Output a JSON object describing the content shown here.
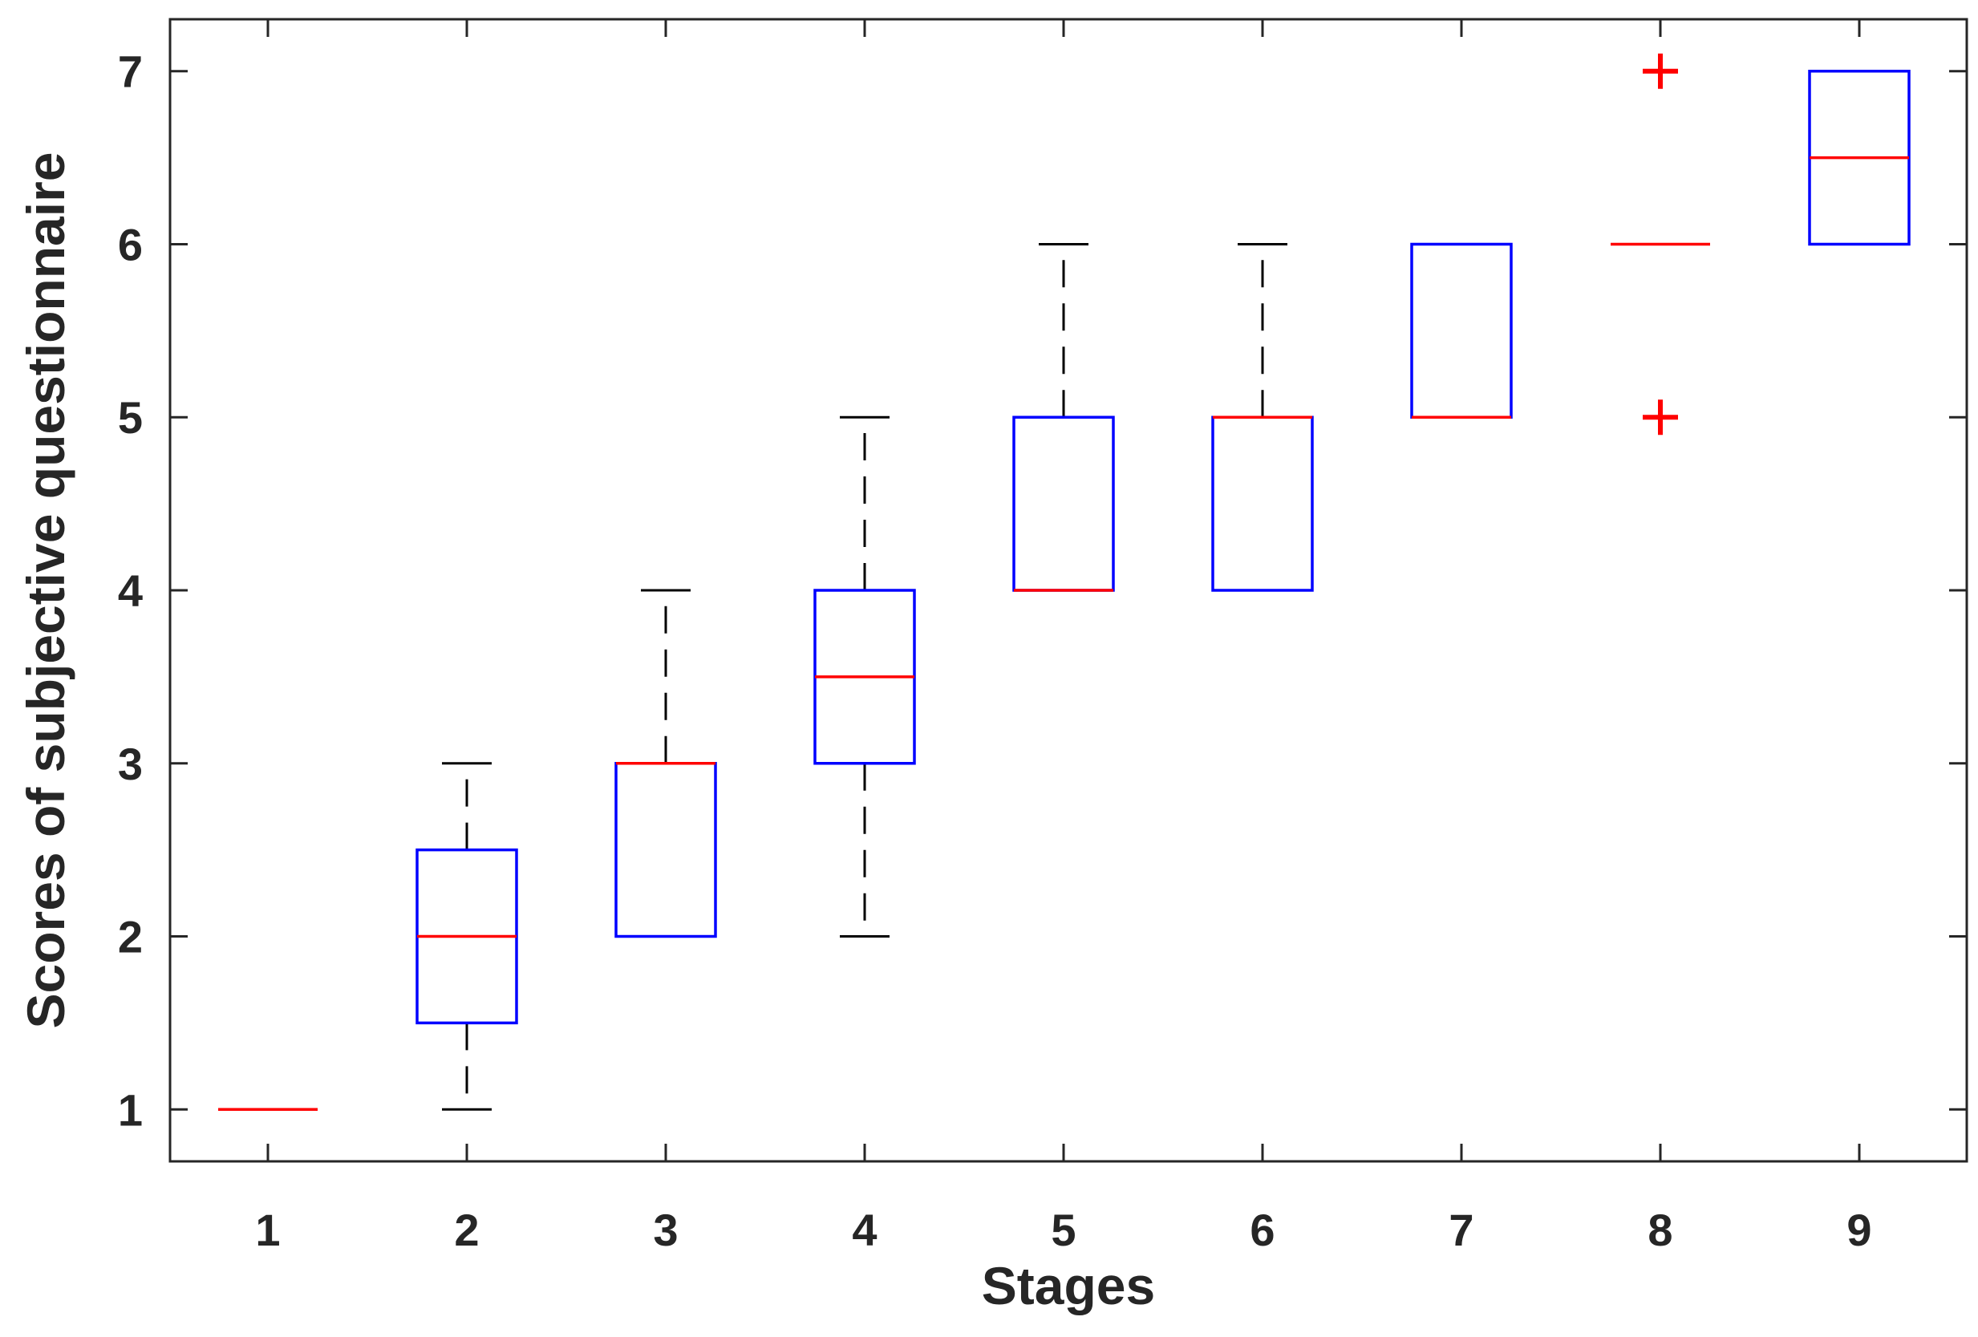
{
  "chart_data": {
    "type": "box",
    "title": "",
    "xlabel": "Stages",
    "ylabel": "Scores of subjective questionnaire",
    "categories": [
      "1",
      "2",
      "3",
      "4",
      "5",
      "6",
      "7",
      "8",
      "9"
    ],
    "yticks": [
      "1",
      "2",
      "3",
      "4",
      "5",
      "6",
      "7"
    ],
    "ylim": [
      0.7,
      7.3
    ],
    "grid": false,
    "boxes": [
      {
        "stage": "1",
        "whisker_low": 1,
        "q1": 1,
        "median": 1,
        "q3": 1,
        "whisker_high": 1,
        "outliers": []
      },
      {
        "stage": "2",
        "whisker_low": 1,
        "q1": 1.5,
        "median": 2,
        "q3": 2.5,
        "whisker_high": 3,
        "outliers": []
      },
      {
        "stage": "3",
        "whisker_low": 2,
        "q1": 2,
        "median": 3,
        "q3": 3,
        "whisker_high": 4,
        "outliers": []
      },
      {
        "stage": "4",
        "whisker_low": 2,
        "q1": 3,
        "median": 3.5,
        "q3": 4,
        "whisker_high": 5,
        "outliers": []
      },
      {
        "stage": "5",
        "whisker_low": 4,
        "q1": 4,
        "median": 4,
        "q3": 5,
        "whisker_high": 6,
        "outliers": []
      },
      {
        "stage": "6",
        "whisker_low": 4,
        "q1": 4,
        "median": 5,
        "q3": 5,
        "whisker_high": 6,
        "outliers": []
      },
      {
        "stage": "7",
        "whisker_low": 5,
        "q1": 5,
        "median": 5,
        "q3": 6,
        "whisker_high": 6,
        "outliers": []
      },
      {
        "stage": "8",
        "whisker_low": 6,
        "q1": 6,
        "median": 6,
        "q3": 6,
        "whisker_high": 6,
        "outliers": [
          5,
          7
        ]
      },
      {
        "stage": "9",
        "whisker_low": 6,
        "q1": 6,
        "median": 6.5,
        "q3": 7,
        "whisker_high": 7,
        "outliers": []
      }
    ],
    "colors": {
      "box": "#0000ff",
      "median": "#ff0000",
      "whisker": "#000000",
      "outlier": "#ff0000",
      "axis": "#262626"
    }
  }
}
